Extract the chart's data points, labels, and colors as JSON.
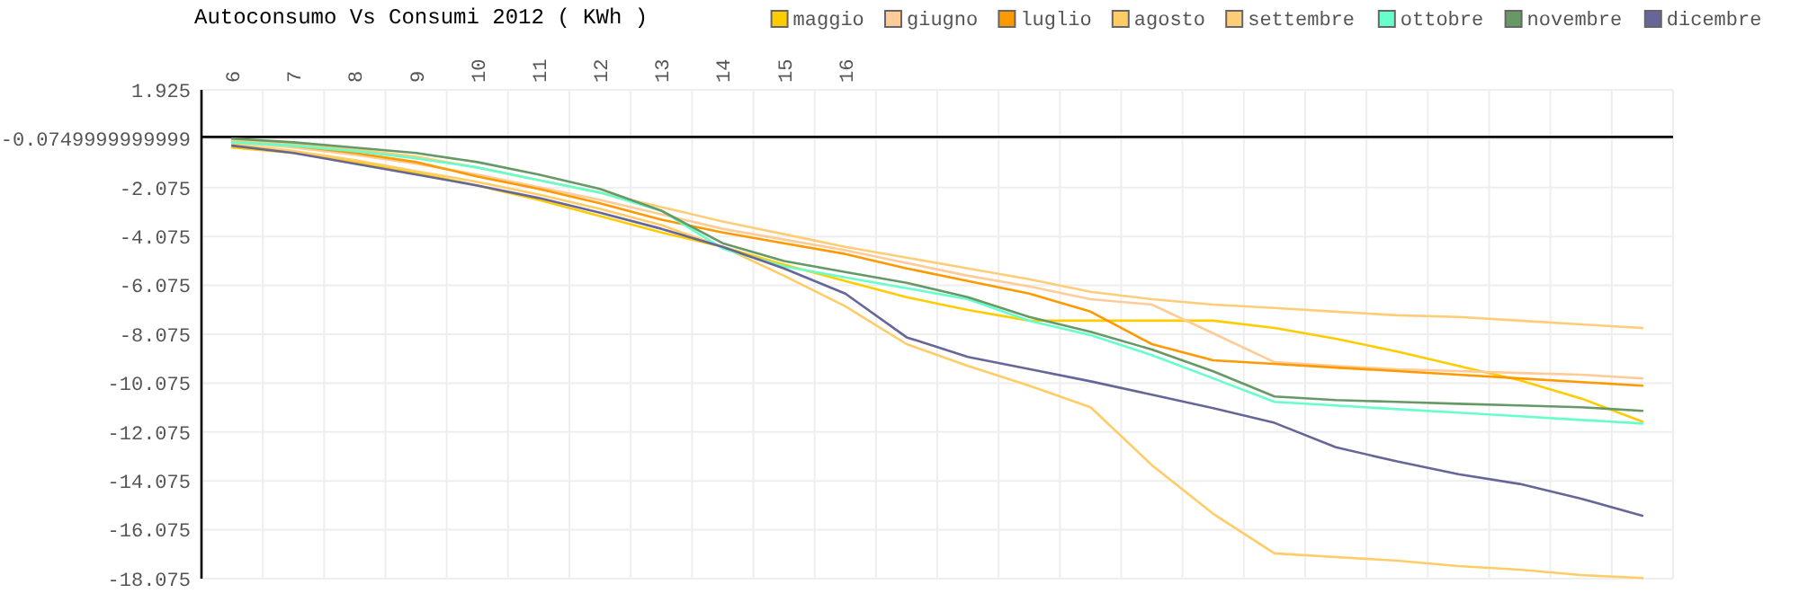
{
  "chart_data": {
    "type": "line",
    "title": "Autoconsumo Vs Consumi 2012 ( KWh )",
    "categories": [
      "6",
      "7",
      "8",
      "9",
      "10",
      "11",
      "12",
      "13",
      "14",
      "15",
      "16",
      null,
      null,
      null,
      null,
      null,
      null,
      null,
      null,
      null,
      null,
      null,
      null,
      null
    ],
    "ylim": [
      -18.075,
      1.925
    ],
    "yticks": [
      1.925,
      {
        "value": -0.075,
        "label": "-0.0749999999999"
      },
      -2.075,
      -4.075,
      -6.075,
      -8.075,
      -10.075,
      -12.075,
      -14.075,
      -16.075,
      -18.075
    ],
    "grid": true,
    "legend": "top right",
    "marker": "none",
    "line_style": "solid",
    "ref_lines": [
      {
        "axis": "y",
        "value": 0,
        "color": "#000000"
      }
    ],
    "series": [
      {
        "name": "maggio",
        "color": "#ffcc00",
        "values": [
          -0.44,
          -0.66,
          -1.03,
          -1.47,
          -1.99,
          -2.58,
          -3.24,
          -3.91,
          -4.5,
          -5.23,
          -5.9,
          -6.56,
          -7.08,
          -7.52,
          -7.52,
          -7.52,
          -7.52,
          -7.82,
          -8.26,
          -8.78,
          -9.37,
          -9.96,
          -10.7,
          -11.65
        ]
      },
      {
        "name": "giugno",
        "color": "#ffcc99",
        "values": [
          -0.21,
          -0.44,
          -0.73,
          -1.1,
          -1.54,
          -2.06,
          -2.58,
          -3.17,
          -3.76,
          -4.2,
          -4.64,
          -5.16,
          -5.68,
          -6.12,
          -6.64,
          -6.86,
          -8.04,
          -9.22,
          -9.37,
          -9.51,
          -9.58,
          -9.66,
          -9.73,
          -9.88
        ]
      },
      {
        "name": "luglio",
        "color": "#ff9900",
        "values": [
          -0.14,
          -0.36,
          -0.66,
          -1.03,
          -1.62,
          -2.13,
          -2.72,
          -3.39,
          -3.91,
          -4.35,
          -4.79,
          -5.38,
          -5.9,
          -6.41,
          -7.15,
          -8.48,
          -9.14,
          -9.29,
          -9.44,
          -9.58,
          -9.73,
          -9.88,
          -10.03,
          -10.18
        ]
      },
      {
        "name": "agosto",
        "color": "#ffcc66",
        "values": [
          -0.29,
          -0.58,
          -0.95,
          -1.4,
          -1.84,
          -2.36,
          -2.95,
          -3.61,
          -4.5,
          -5.68,
          -6.93,
          -8.48,
          -9.37,
          -10.18,
          -11.06,
          -13.43,
          -15.42,
          -17.04,
          -17.19,
          -17.34,
          -17.56,
          -17.71,
          -17.93,
          -18.05
        ]
      },
      {
        "name": "settembre",
        "color": "#ffcc77",
        "values": [
          -0.14,
          -0.29,
          -0.51,
          -0.81,
          -1.25,
          -1.77,
          -2.28,
          -2.87,
          -3.46,
          -3.98,
          -4.5,
          -4.94,
          -5.38,
          -5.82,
          -6.34,
          -6.64,
          -6.86,
          -7.0,
          -7.15,
          -7.3,
          -7.37,
          -7.52,
          -7.67,
          -7.82
        ]
      },
      {
        "name": "ottobre",
        "color": "#66ffcc",
        "values": [
          -0.22,
          -0.36,
          -0.58,
          -0.88,
          -1.25,
          -1.77,
          -2.28,
          -3.02,
          -4.57,
          -5.3,
          -5.75,
          -6.19,
          -6.64,
          -7.52,
          -8.11,
          -8.93,
          -9.88,
          -10.84,
          -10.99,
          -11.14,
          -11.28,
          -11.43,
          -11.58,
          -11.73
        ]
      },
      {
        "name": "novembre",
        "color": "#669966",
        "values": [
          -0.07,
          -0.22,
          -0.44,
          -0.66,
          -1.03,
          -1.54,
          -2.13,
          -3.02,
          -4.35,
          -5.08,
          -5.53,
          -5.97,
          -6.56,
          -7.37,
          -7.97,
          -8.7,
          -9.59,
          -10.62,
          -10.77,
          -10.84,
          -10.92,
          -10.99,
          -11.06,
          -11.21
        ]
      },
      {
        "name": "dicembre",
        "color": "#666699",
        "values": [
          -0.36,
          -0.66,
          -1.1,
          -1.54,
          -1.99,
          -2.5,
          -3.1,
          -3.76,
          -4.5,
          -5.38,
          -6.41,
          -8.2,
          -9.0,
          -9.5,
          -10.0,
          -10.55,
          -11.1,
          -11.7,
          -12.7,
          -13.28,
          -13.8,
          -14.2,
          -14.8,
          -15.5
        ]
      }
    ]
  }
}
